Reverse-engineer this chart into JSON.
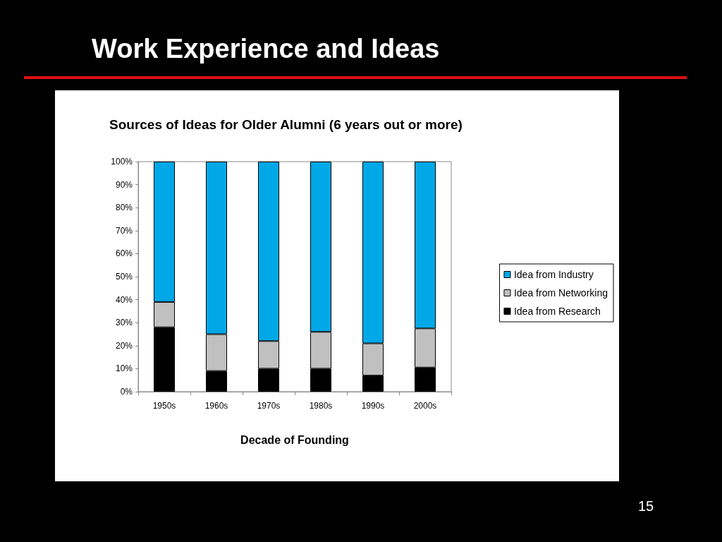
{
  "chart_data": {
    "type": "bar",
    "title": "Work Experience and Ideas",
    "subtitle": "Sources of Ideas for Older Alumni (6 years out or more)",
    "xlabel": "Decade of Founding",
    "categories": [
      "1950s",
      "1960s",
      "1970s",
      "1980s",
      "1990s",
      "2000s"
    ],
    "stacked": true,
    "series": [
      {
        "name": "Idea from Research",
        "color": "#000000",
        "values": [
          28,
          9,
          10,
          10,
          7,
          10.5
        ]
      },
      {
        "name": "Idea from Networking",
        "color": "#c0c0c0",
        "values": [
          11,
          16,
          12,
          16,
          14,
          17
        ]
      },
      {
        "name": "Idea from Industry",
        "color": "#00a8e8",
        "values": [
          61,
          75,
          78,
          74,
          79,
          72.5
        ]
      }
    ],
    "ylim": [
      0,
      100
    ],
    "yticks": [
      {
        "value": 0,
        "label": "0%"
      },
      {
        "value": 10,
        "label": "10%"
      },
      {
        "value": 20,
        "label": "20%"
      },
      {
        "value": 30,
        "label": "30%"
      },
      {
        "value": 40,
        "label": "40%"
      },
      {
        "value": 50,
        "label": "50%"
      },
      {
        "value": 60,
        "label": "60%"
      },
      {
        "value": 70,
        "label": "70%"
      },
      {
        "value": 80,
        "label": "80%"
      },
      {
        "value": 90,
        "label": "90%"
      },
      {
        "value": 100,
        "label": "100%"
      }
    ],
    "grid": false,
    "legend": "right",
    "annotations": [
      "15"
    ]
  }
}
